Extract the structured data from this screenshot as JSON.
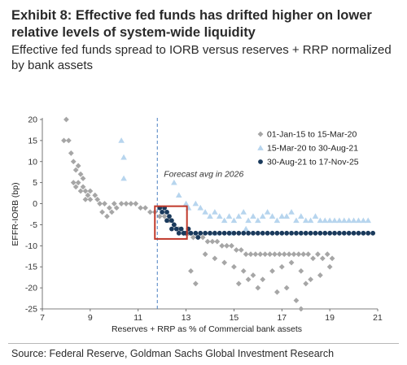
{
  "header": {
    "title": "Exhibit 8: Effective fed funds has drifted higher on lower relative levels of system-wide liquidity",
    "subtitle": "Effective fed funds spread to IORB versus reserves + RRP normalized by bank assets"
  },
  "footer": {
    "source": "Source: Federal Reserve, Goldman Sachs Global Investment Research"
  },
  "chart_data": {
    "type": "scatter",
    "xlabel": "Reserves + RRP as % of Commercial bank assets",
    "ylabel": "EFFR-IORB (bp)",
    "xlim": [
      7,
      21
    ],
    "ylim": [
      -25,
      20
    ],
    "xticks": [
      "7",
      "9",
      "11",
      "13",
      "15",
      "17",
      "19",
      "21"
    ],
    "yticks": [
      "20",
      "15",
      "10",
      "5",
      "0",
      "-5",
      "-10",
      "-15",
      "-20",
      "-25"
    ],
    "grid": false,
    "legend_position": "top-right",
    "annotation": {
      "text": "Forecast avg in 2026",
      "x": 11.8
    },
    "highlight_box": {
      "x": [
        11.8,
        12.8
      ],
      "y": [
        -7.6,
        -0.6
      ]
    },
    "series": [
      {
        "name": "01-Jan-15 to 15-Mar-20",
        "marker": "diamond",
        "color": "#a6a6a6",
        "points": [
          [
            8.0,
            20
          ],
          [
            7.9,
            15
          ],
          [
            8.1,
            15
          ],
          [
            8.2,
            12
          ],
          [
            8.3,
            10
          ],
          [
            8.4,
            8
          ],
          [
            8.5,
            9
          ],
          [
            8.6,
            7
          ],
          [
            8.7,
            6
          ],
          [
            8.3,
            5
          ],
          [
            8.4,
            4
          ],
          [
            8.5,
            5
          ],
          [
            8.6,
            3
          ],
          [
            8.7,
            4
          ],
          [
            8.8,
            3
          ],
          [
            8.9,
            2
          ],
          [
            9.0,
            3
          ],
          [
            8.8,
            1
          ],
          [
            9.0,
            1
          ],
          [
            9.2,
            2
          ],
          [
            9.3,
            1
          ],
          [
            9.4,
            0
          ],
          [
            9.6,
            0
          ],
          [
            9.8,
            -1
          ],
          [
            10.0,
            0
          ],
          [
            9.5,
            -2
          ],
          [
            9.7,
            -3
          ],
          [
            9.9,
            -2
          ],
          [
            10.1,
            -1
          ],
          [
            10.3,
            0
          ],
          [
            10.5,
            0
          ],
          [
            10.7,
            0
          ],
          [
            10.9,
            0
          ],
          [
            11.1,
            -1
          ],
          [
            11.3,
            -1
          ],
          [
            11.5,
            -2
          ],
          [
            11.7,
            -2
          ],
          [
            11.9,
            -3
          ],
          [
            12.1,
            -3
          ],
          [
            12.3,
            -4
          ],
          [
            12.5,
            -5
          ],
          [
            12.7,
            -6
          ],
          [
            12.9,
            -7
          ],
          [
            13.1,
            -7
          ],
          [
            13.3,
            -8
          ],
          [
            13.5,
            -8
          ],
          [
            13.7,
            -8
          ],
          [
            13.9,
            -9
          ],
          [
            14.1,
            -9
          ],
          [
            14.3,
            -9
          ],
          [
            14.5,
            -10
          ],
          [
            14.7,
            -10
          ],
          [
            14.9,
            -10
          ],
          [
            15.1,
            -11
          ],
          [
            15.3,
            -11
          ],
          [
            15.5,
            -12
          ],
          [
            15.7,
            -12
          ],
          [
            15.9,
            -12
          ],
          [
            16.1,
            -12
          ],
          [
            16.3,
            -12
          ],
          [
            16.5,
            -12
          ],
          [
            16.7,
            -12
          ],
          [
            16.9,
            -12
          ],
          [
            17.1,
            -12
          ],
          [
            17.3,
            -12
          ],
          [
            17.5,
            -12
          ],
          [
            17.7,
            -12
          ],
          [
            17.9,
            -12
          ],
          [
            18.1,
            -12
          ],
          [
            18.3,
            -13
          ],
          [
            18.5,
            -12
          ],
          [
            18.7,
            -13
          ],
          [
            18.9,
            -12
          ],
          [
            19.1,
            -13
          ],
          [
            13.8,
            -12
          ],
          [
            14.2,
            -13
          ],
          [
            14.6,
            -14
          ],
          [
            15.0,
            -15
          ],
          [
            15.4,
            -16
          ],
          [
            15.8,
            -17
          ],
          [
            16.2,
            -18
          ],
          [
            16.6,
            -16
          ],
          [
            17.0,
            -15
          ],
          [
            17.4,
            -14
          ],
          [
            17.8,
            -16
          ],
          [
            18.2,
            -18
          ],
          [
            18.6,
            -17
          ],
          [
            19.0,
            -15
          ],
          [
            13.2,
            -16
          ],
          [
            13.4,
            -19
          ],
          [
            15.2,
            -19
          ],
          [
            16.0,
            -20
          ],
          [
            16.8,
            -21
          ],
          [
            17.2,
            -20
          ],
          [
            17.6,
            -23
          ],
          [
            18.0,
            -19
          ],
          [
            17.8,
            -25
          ],
          [
            15.6,
            -18
          ]
        ]
      },
      {
        "name": "15-Mar-20 to 30-Aug-21",
        "marker": "triangle",
        "color": "#b7d5ee",
        "points": [
          [
            10.3,
            15
          ],
          [
            10.4,
            11
          ],
          [
            10.4,
            6
          ],
          [
            12.5,
            5
          ],
          [
            12.7,
            2
          ],
          [
            13.0,
            0
          ],
          [
            13.1,
            -1
          ],
          [
            13.4,
            0
          ],
          [
            13.6,
            -1
          ],
          [
            13.8,
            -2
          ],
          [
            14.0,
            -3
          ],
          [
            14.2,
            -2
          ],
          [
            14.4,
            -3
          ],
          [
            14.6,
            -4
          ],
          [
            14.8,
            -3
          ],
          [
            15.0,
            -4
          ],
          [
            15.2,
            -3
          ],
          [
            15.4,
            -2
          ],
          [
            15.6,
            -4
          ],
          [
            15.8,
            -3
          ],
          [
            16.0,
            -4
          ],
          [
            16.2,
            -3
          ],
          [
            16.4,
            -2
          ],
          [
            16.6,
            -3
          ],
          [
            16.8,
            -4
          ],
          [
            17.0,
            -3
          ],
          [
            17.2,
            -3
          ],
          [
            17.4,
            -2
          ],
          [
            17.6,
            -4
          ],
          [
            17.8,
            -3
          ],
          [
            18.0,
            -4
          ],
          [
            18.2,
            -4
          ],
          [
            18.4,
            -3
          ],
          [
            18.6,
            -4
          ],
          [
            18.8,
            -4
          ],
          [
            19.0,
            -4
          ],
          [
            19.2,
            -4
          ],
          [
            19.4,
            -4
          ],
          [
            19.6,
            -4
          ],
          [
            19.8,
            -4
          ],
          [
            20.0,
            -4
          ],
          [
            20.2,
            -4
          ],
          [
            20.4,
            -4
          ],
          [
            20.6,
            -4
          ],
          [
            14.2,
            -7
          ],
          [
            14.9,
            -7
          ],
          [
            15.5,
            -6
          ]
        ]
      },
      {
        "name": "30-Aug-21 to 17-Nov-25",
        "marker": "circle",
        "color": "#1a3a5c",
        "points": [
          [
            11.9,
            -1
          ],
          [
            12.0,
            -2
          ],
          [
            12.1,
            -1
          ],
          [
            12.2,
            -2
          ],
          [
            12.3,
            -3
          ],
          [
            12.2,
            -4
          ],
          [
            12.4,
            -4
          ],
          [
            12.5,
            -5
          ],
          [
            12.4,
            -6
          ],
          [
            12.6,
            -6
          ],
          [
            12.7,
            -7
          ],
          [
            12.8,
            -6
          ],
          [
            12.9,
            -7
          ],
          [
            13.0,
            -7
          ],
          [
            13.2,
            -7
          ],
          [
            13.4,
            -7
          ],
          [
            13.6,
            -7
          ],
          [
            13.8,
            -7
          ],
          [
            14.0,
            -7
          ],
          [
            14.2,
            -7
          ],
          [
            14.4,
            -7
          ],
          [
            14.6,
            -7
          ],
          [
            14.8,
            -7
          ],
          [
            15.0,
            -7
          ],
          [
            15.2,
            -7
          ],
          [
            15.4,
            -7
          ],
          [
            15.6,
            -7
          ],
          [
            15.8,
            -7
          ],
          [
            16.0,
            -7
          ],
          [
            16.2,
            -7
          ],
          [
            16.4,
            -7
          ],
          [
            16.6,
            -7
          ],
          [
            16.8,
            -7
          ],
          [
            17.0,
            -7
          ],
          [
            17.2,
            -7
          ],
          [
            17.4,
            -7
          ],
          [
            17.6,
            -7
          ],
          [
            17.8,
            -7
          ],
          [
            18.0,
            -7
          ],
          [
            18.2,
            -7
          ],
          [
            18.4,
            -7
          ],
          [
            18.6,
            -7
          ],
          [
            18.8,
            -7
          ],
          [
            19.0,
            -7
          ],
          [
            19.2,
            -7
          ],
          [
            19.4,
            -7
          ],
          [
            19.6,
            -7
          ],
          [
            19.8,
            -7
          ],
          [
            20.0,
            -7
          ],
          [
            20.2,
            -7
          ],
          [
            20.4,
            -7
          ],
          [
            20.6,
            -7
          ],
          [
            20.8,
            -7
          ],
          [
            13.1,
            -6
          ],
          [
            13.5,
            -8
          ]
        ]
      }
    ]
  }
}
